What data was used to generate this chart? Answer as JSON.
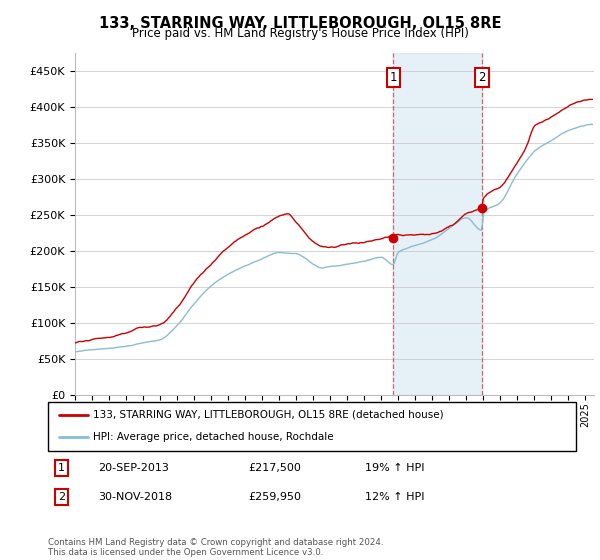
{
  "title": "133, STARRING WAY, LITTLEBOROUGH, OL15 8RE",
  "subtitle": "Price paid vs. HM Land Registry's House Price Index (HPI)",
  "legend_line1": "133, STARRING WAY, LITTLEBOROUGH, OL15 8RE (detached house)",
  "legend_line2": "HPI: Average price, detached house, Rochdale",
  "annotation1_date": "20-SEP-2013",
  "annotation1_price": "£217,500",
  "annotation1_hpi": "19% ↑ HPI",
  "annotation2_date": "30-NOV-2018",
  "annotation2_price": "£259,950",
  "annotation2_hpi": "12% ↑ HPI",
  "footer": "Contains HM Land Registry data © Crown copyright and database right 2024.\nThis data is licensed under the Open Government Licence v3.0.",
  "red_color": "#cc0000",
  "blue_color": "#89bdd3",
  "shaded_color": "#daeaf5",
  "sale1_x": 2013.71,
  "sale1_y": 217500,
  "sale2_x": 2018.92,
  "sale2_y": 259950,
  "ylim": [
    0,
    475000
  ],
  "yticks": [
    0,
    50000,
    100000,
    150000,
    200000,
    250000,
    300000,
    350000,
    400000,
    450000
  ],
  "xmin": 1995,
  "xmax": 2025.5
}
